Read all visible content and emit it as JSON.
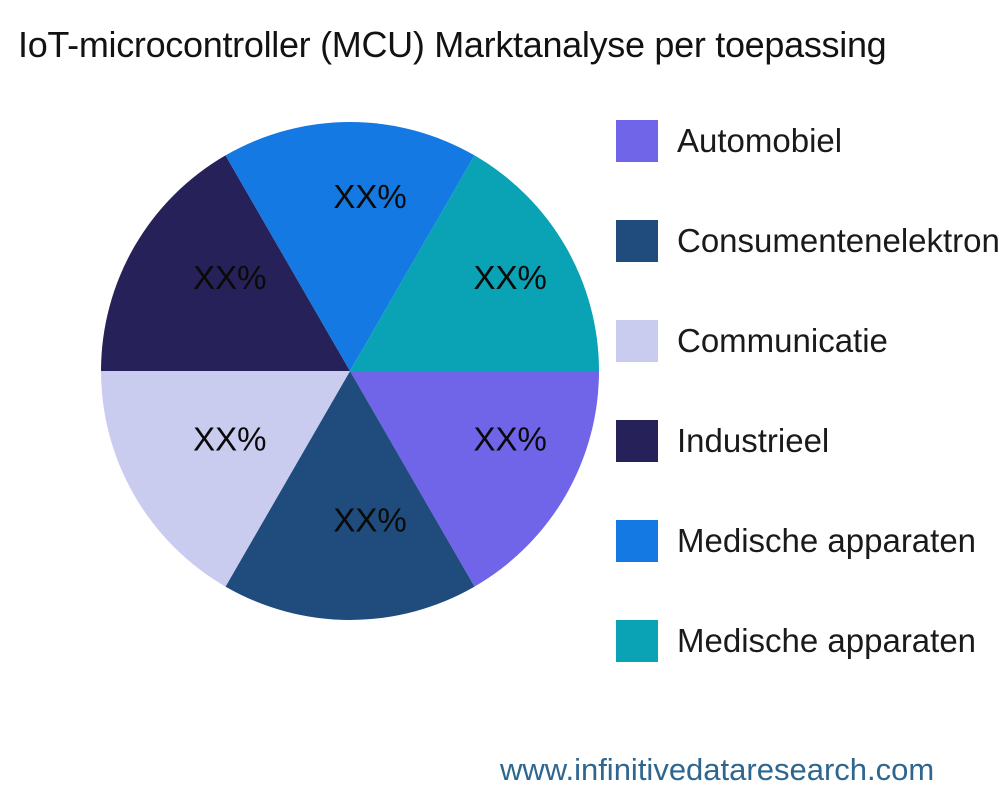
{
  "title": "IoT-microcontroller (MCU) Marktanalyse per toepassing",
  "watermark": "www.infinitivedataresearch.com",
  "colors": {
    "background": "#ffffff",
    "title_text": "#121212",
    "legend_text": "#1a1a1a",
    "slice_label_text": "#0a0a0a",
    "watermark_text": "#2f6690"
  },
  "chart_data": {
    "type": "pie",
    "title": "IoT-microcontroller (MCU) Marktanalyse per toepassing",
    "legend_position": "right",
    "start_angle_deg": 0,
    "direction": "clockwise",
    "slices": [
      {
        "label": "Automobiel",
        "value": 16.67,
        "value_label": "XX%",
        "color": "#7064E8"
      },
      {
        "label": "Consumentenelektronica",
        "value": 16.67,
        "value_label": "XX%",
        "color": "#1F4C7C"
      },
      {
        "label": "Communicatie",
        "value": 16.67,
        "value_label": "XX%",
        "color": "#C9CCEF"
      },
      {
        "label": "Industrieel",
        "value": 16.67,
        "value_label": "XX%",
        "color": "#262158"
      },
      {
        "label": "Medische apparaten",
        "value": 16.67,
        "value_label": "XX%",
        "color": "#1479E2"
      },
      {
        "label": "Medische apparaten",
        "value": 16.67,
        "value_label": "XX%",
        "color": "#0AA2B5"
      }
    ]
  }
}
